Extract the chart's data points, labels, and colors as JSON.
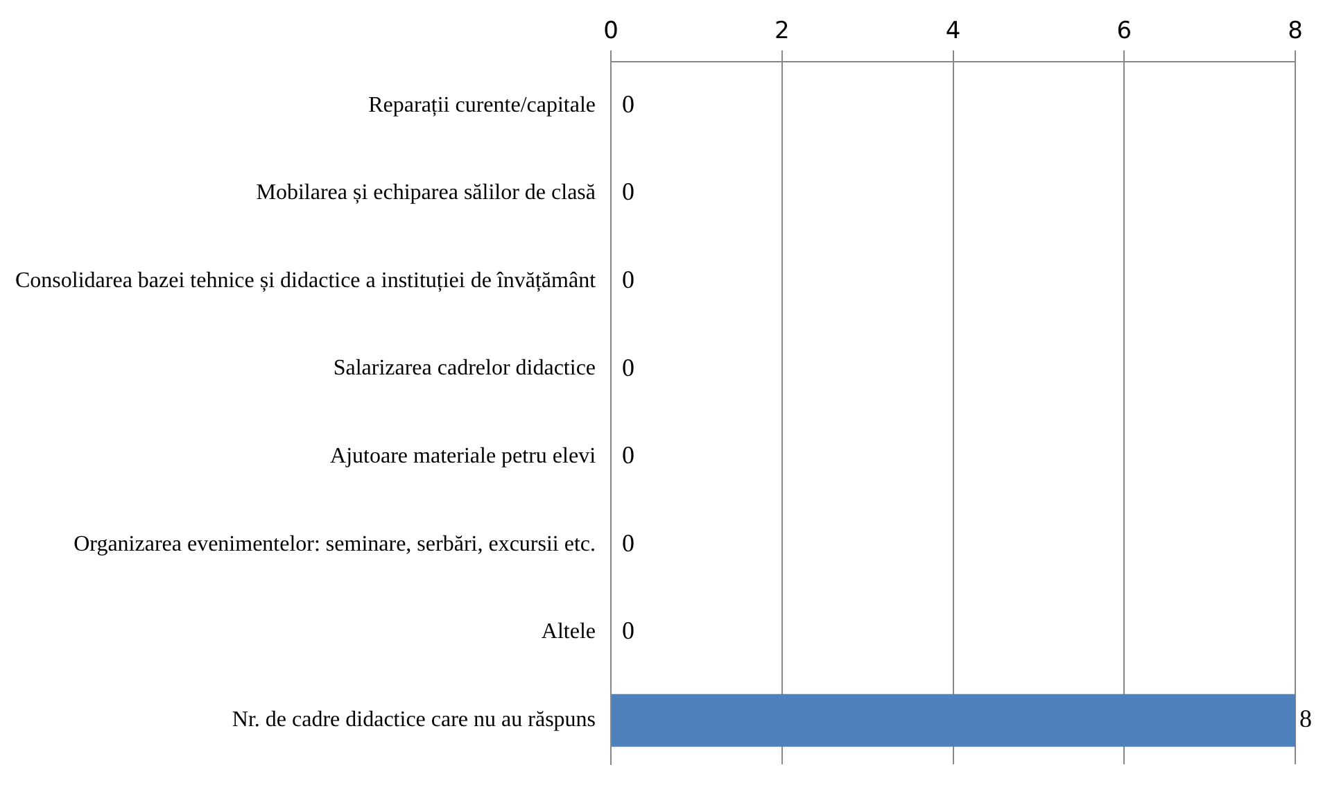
{
  "chart_data": {
    "type": "bar",
    "orientation": "horizontal",
    "categories": [
      "Reparații curente/capitale",
      "Mobilarea și echiparea sălilor de clasă",
      "Consolidarea bazei tehnice și didactice a instituției de învățământ",
      "Salarizarea cadrelor didactice",
      "Ajutoare materiale petru elevi",
      "Organizarea evenimentelor: seminare, serbări, excursii etc.",
      "Altele",
      "Nr. de cadre didactice care nu au răspuns"
    ],
    "values": [
      0,
      0,
      0,
      0,
      0,
      0,
      0,
      8
    ],
    "color": "#4f81bd",
    "xlim": [
      0,
      8
    ],
    "xticks": [
      0,
      2,
      4,
      6,
      8
    ],
    "grid": "x",
    "legend": false,
    "data_labels": true
  }
}
